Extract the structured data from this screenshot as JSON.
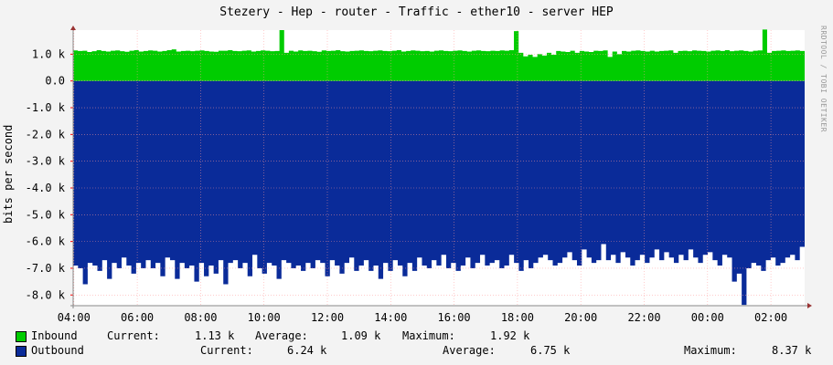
{
  "title": "Stezery - Hep - router - Traffic - ether10 - server HEP",
  "watermark": "RRDTOOL / TOBI OETIKER",
  "colors": {
    "inbound": "#00cc00",
    "outbound": "#0a2b99",
    "background": "#f3f3f3",
    "canvas": "#ffffff",
    "grid": "#ff9999",
    "axis": "#888888"
  },
  "legend": {
    "inbound": {
      "name": "Inbound",
      "current_label": "Current:",
      "current": "1.13 k",
      "average_label": "Average:",
      "average": "1.09 k",
      "maximum_label": "Maximum:",
      "maximum": "1.92 k"
    },
    "outbound": {
      "name": "Outbound",
      "current_label": "Current:",
      "current": "6.24 k",
      "average_label": "Average:",
      "average": "6.75 k",
      "maximum_label": "Maximum:",
      "maximum": "8.37 k"
    }
  },
  "chart_data": {
    "type": "area",
    "title": "Stezery - Hep - router - Traffic - ether10 - server HEP",
    "ylabel": "bits per second",
    "xlabel": "",
    "y_tick_labels": [
      "1.0 k",
      "0.0",
      "-1.0 k",
      "-2.0 k",
      "-3.0 k",
      "-4.0 k",
      "-5.0 k",
      "-6.0 k",
      "-7.0 k",
      "-8.0 k"
    ],
    "y_ticks": [
      1000,
      0,
      -1000,
      -2000,
      -3000,
      -4000,
      -5000,
      -6000,
      -7000,
      -8000
    ],
    "ylim": [
      -8400,
      1900
    ],
    "x_tick_labels": [
      "04:00",
      "06:00",
      "08:00",
      "10:00",
      "12:00",
      "14:00",
      "16:00",
      "18:00",
      "20:00",
      "22:00",
      "00:00",
      "02:00"
    ],
    "x_range_hours": [
      "03:50",
      "03:35"
    ],
    "grid": true,
    "series": [
      {
        "name": "Inbound",
        "color": "#00cc00",
        "values": [
          1140,
          1120,
          1130,
          1080,
          1110,
          1150,
          1120,
          1100,
          1130,
          1140,
          1110,
          1090,
          1130,
          1150,
          1100,
          1120,
          1140,
          1130,
          1100,
          1120,
          1150,
          1180,
          1100,
          1120,
          1130,
          1110,
          1130,
          1140,
          1120,
          1100,
          1090,
          1130,
          1130,
          1150,
          1120,
          1110,
          1130,
          1140,
          1100,
          1120,
          1140,
          1130,
          1110,
          1120,
          1900,
          1050,
          1130,
          1100,
          1140,
          1120,
          1130,
          1110,
          1090,
          1140,
          1120,
          1130,
          1150,
          1110,
          1100,
          1120,
          1130,
          1140,
          1120,
          1110,
          1130,
          1140,
          1120,
          1110,
          1130,
          1150,
          1100,
          1120,
          1140,
          1130,
          1110,
          1120,
          1100,
          1130,
          1140,
          1120,
          1110,
          1130,
          1140,
          1120,
          1100,
          1130,
          1140,
          1120,
          1110,
          1130,
          1120,
          1140,
          1130,
          1150,
          1860,
          1050,
          920,
          980,
          900,
          1000,
          950,
          1050,
          980,
          1120,
          1100,
          1080,
          1130,
          1050,
          1120,
          1100,
          1080,
          1130,
          1120,
          1140,
          900,
          1100,
          1000,
          1120,
          1100,
          1130,
          1140,
          1120,
          1100,
          1130,
          1100,
          1120,
          1130,
          1140,
          1050,
          1120,
          1130,
          1110,
          1140,
          1130,
          1120,
          1100,
          1130,
          1140,
          1120,
          1150,
          1110,
          1130,
          1140,
          1120,
          1100,
          1130,
          1140,
          1920,
          1050,
          1120,
          1130,
          1140,
          1120,
          1130,
          1140,
          1120
        ],
        "note": "values sampled left to right across the plot"
      },
      {
        "name": "Outbound",
        "color": "#0a2b99",
        "values": [
          -6900,
          -7000,
          -7600,
          -6800,
          -6900,
          -7100,
          -6700,
          -7400,
          -6800,
          -7000,
          -6600,
          -6900,
          -7200,
          -6800,
          -7000,
          -6700,
          -7000,
          -6800,
          -7300,
          -6600,
          -6700,
          -7400,
          -6800,
          -7000,
          -6900,
          -7500,
          -6800,
          -7300,
          -6900,
          -7200,
          -6700,
          -7600,
          -6800,
          -6700,
          -7000,
          -6800,
          -7300,
          -6500,
          -7000,
          -7200,
          -6800,
          -6900,
          -7400,
          -6700,
          -6800,
          -7000,
          -6900,
          -7100,
          -6800,
          -7000,
          -6700,
          -6800,
          -7300,
          -6700,
          -6900,
          -7200,
          -6800,
          -6600,
          -7100,
          -6900,
          -6700,
          -7100,
          -6900,
          -7400,
          -6800,
          -7100,
          -6700,
          -6900,
          -7300,
          -6800,
          -7100,
          -6600,
          -6900,
          -7000,
          -6700,
          -6900,
          -6500,
          -7000,
          -6800,
          -7100,
          -6900,
          -6600,
          -7000,
          -6800,
          -6500,
          -6900,
          -6800,
          -6700,
          -7000,
          -6900,
          -6500,
          -6800,
          -7100,
          -6700,
          -7000,
          -6800,
          -6600,
          -6500,
          -6700,
          -6900,
          -6800,
          -6600,
          -6400,
          -6700,
          -6900,
          -6300,
          -6600,
          -6800,
          -6700,
          -6100,
          -6700,
          -6500,
          -6800,
          -6400,
          -6600,
          -6900,
          -6700,
          -6500,
          -6800,
          -6600,
          -6300,
          -6700,
          -6400,
          -6600,
          -6800,
          -6500,
          -6700,
          -6300,
          -6600,
          -6800,
          -6500,
          -6400,
          -6700,
          -6900,
          -6500,
          -6600,
          -7500,
          -7200,
          -8370,
          -7000,
          -6800,
          -6900,
          -7100,
          -6700,
          -6600,
          -6900,
          -6800,
          -6600,
          -6500,
          -6700,
          -6200
        ]
      }
    ]
  }
}
